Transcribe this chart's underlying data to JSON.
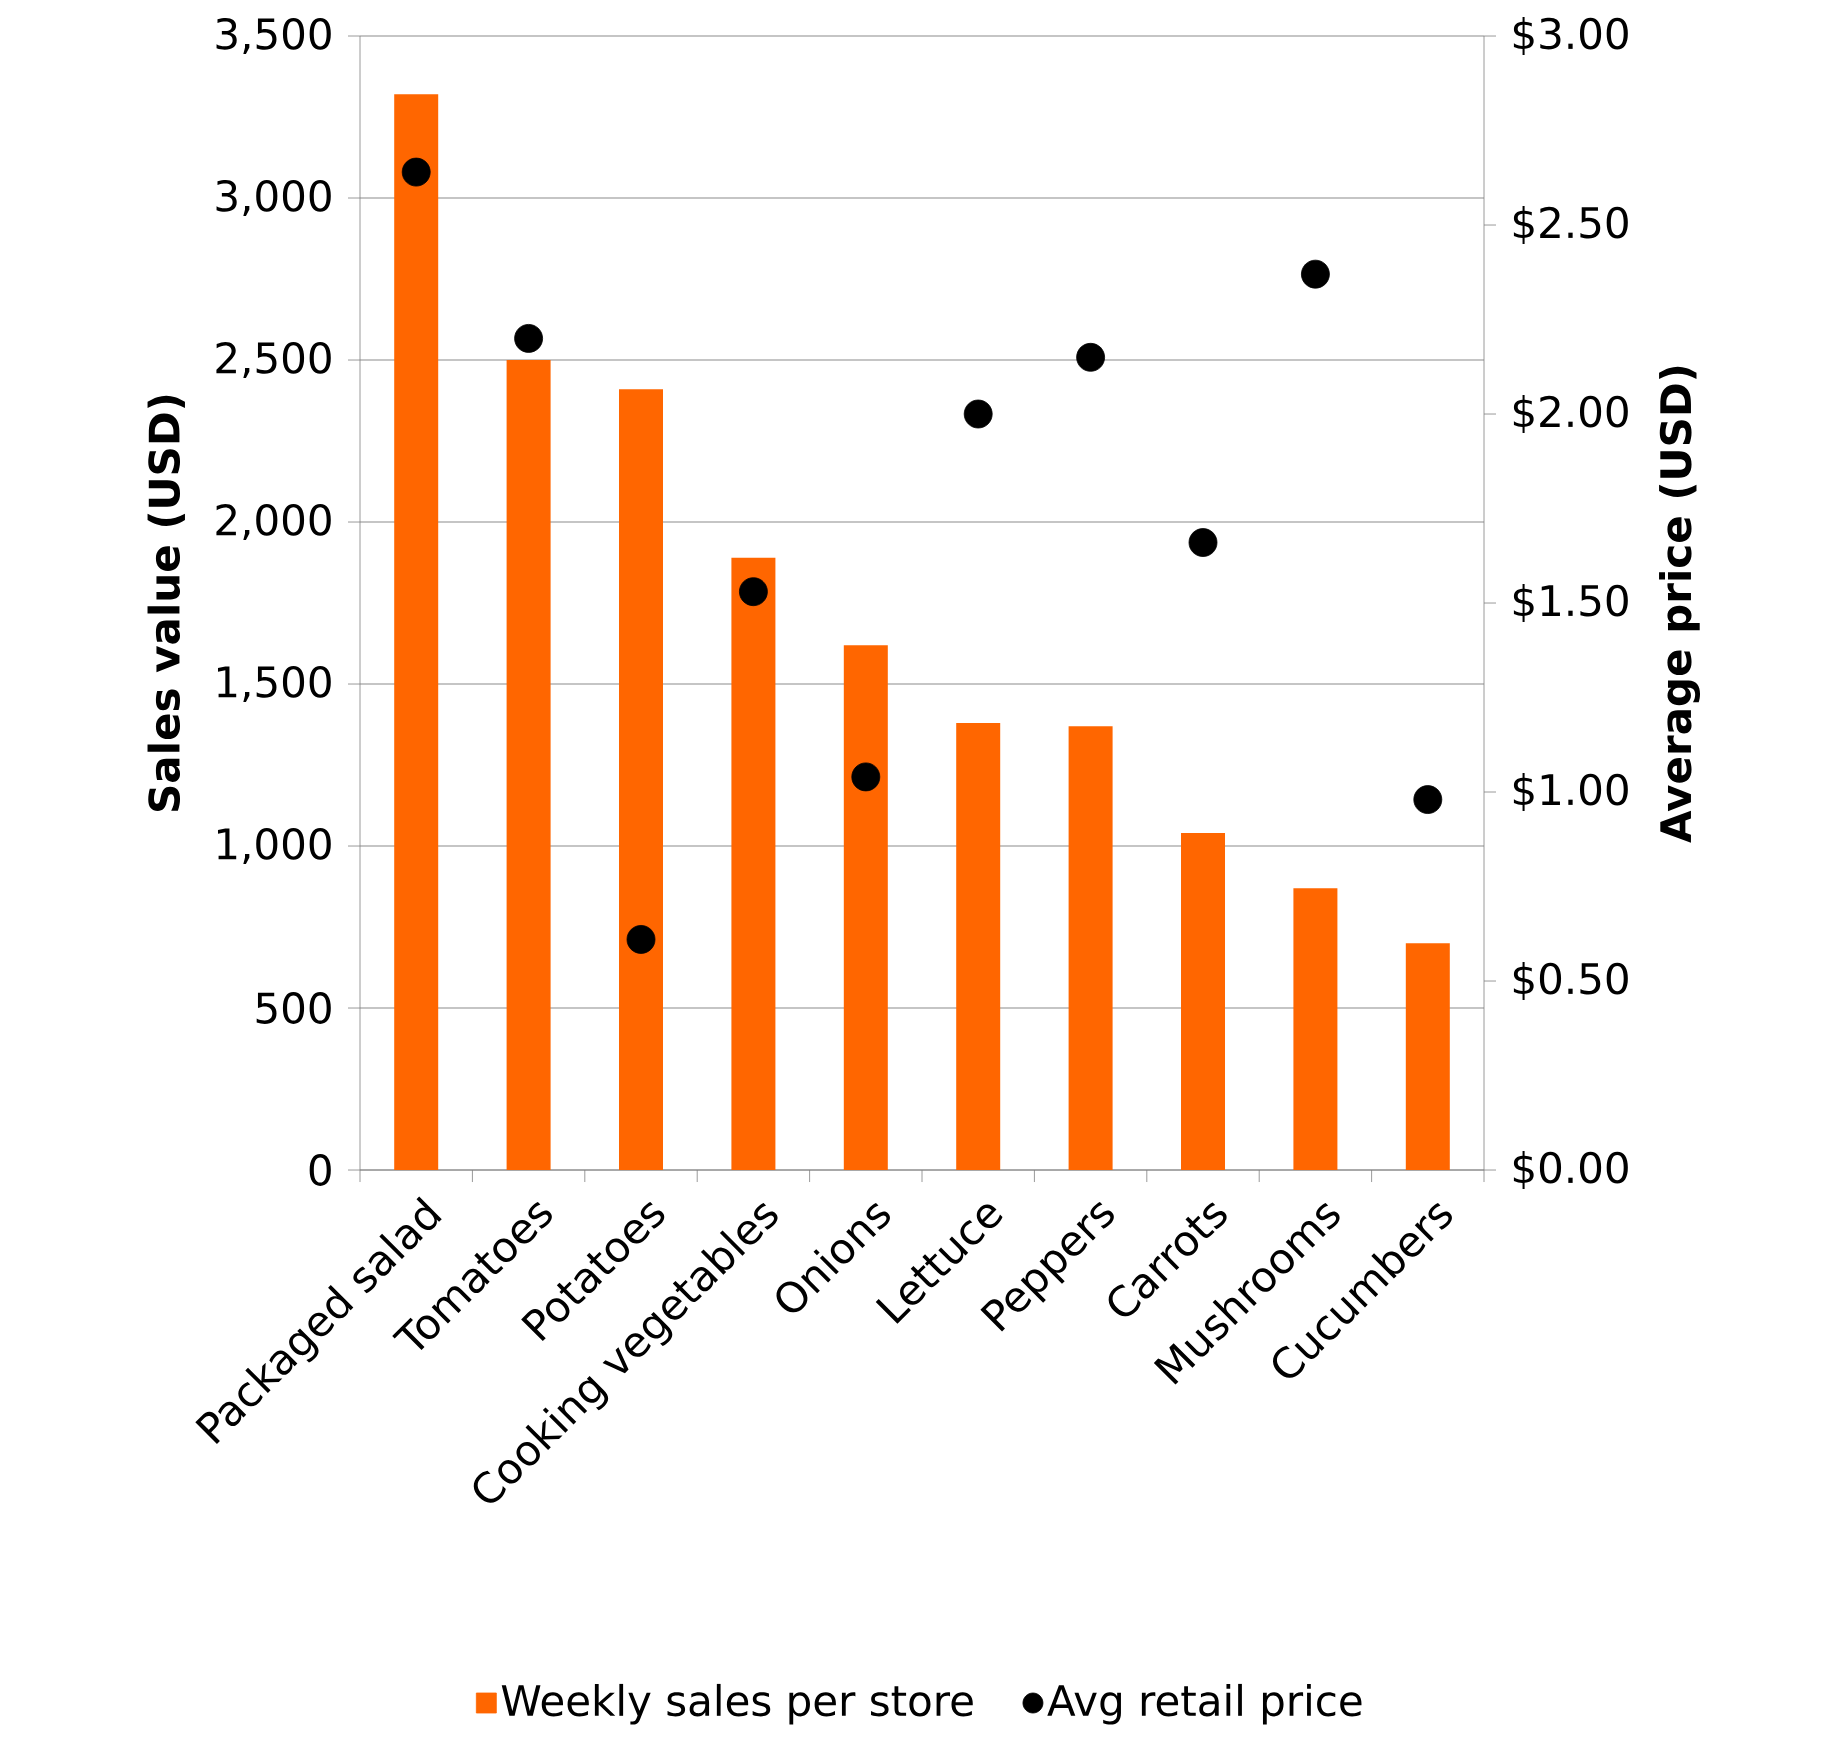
{
  "chart_data": {
    "type": "bar",
    "categories": [
      "Packaged salad",
      "Tomatoes",
      "Potatoes",
      "Cooking vegetables",
      "Onions",
      "Lettuce",
      "Peppers",
      "Carrots",
      "Mushrooms",
      "Cucumbers"
    ],
    "ylabel": "Sales value (USD)",
    "y2label": "Average price (USD)",
    "ylim": [
      0,
      3500
    ],
    "yticks": [
      {
        "value": 0,
        "label": "0"
      },
      {
        "value": 500,
        "label": "500"
      },
      {
        "value": 1000,
        "label": "1,000"
      },
      {
        "value": 1500,
        "label": "1,500"
      },
      {
        "value": 2000,
        "label": "2,000"
      },
      {
        "value": 2500,
        "label": "2,500"
      },
      {
        "value": 3000,
        "label": "3,000"
      },
      {
        "value": 3500,
        "label": "3,500"
      }
    ],
    "y2lim": [
      0,
      3
    ],
    "y2ticks": [
      {
        "value": 0,
        "label": "$0.00"
      },
      {
        "value": 0.5,
        "label": "$0.50"
      },
      {
        "value": 1,
        "label": "$1.00"
      },
      {
        "value": 1.5,
        "label": "$1.50"
      },
      {
        "value": 2,
        "label": "$2.00"
      },
      {
        "value": 2.5,
        "label": "$2.50"
      },
      {
        "value": 3,
        "label": "$3.00"
      }
    ],
    "grid": "y",
    "legend": "bottom",
    "series": [
      {
        "name": "Weekly sales per store",
        "color": "#ff6600",
        "values": [
          3320,
          2500,
          2410,
          1890,
          1620,
          1380,
          1370,
          1040,
          870,
          700
        ]
      },
      {
        "name": "Avg retail price",
        "type": "scatter",
        "axis": "y2",
        "color": "#000000",
        "values": [
          2.64,
          2.2,
          0.61,
          1.53,
          1.04,
          2.0,
          2.15,
          1.66,
          2.37,
          0.98
        ]
      }
    ]
  }
}
